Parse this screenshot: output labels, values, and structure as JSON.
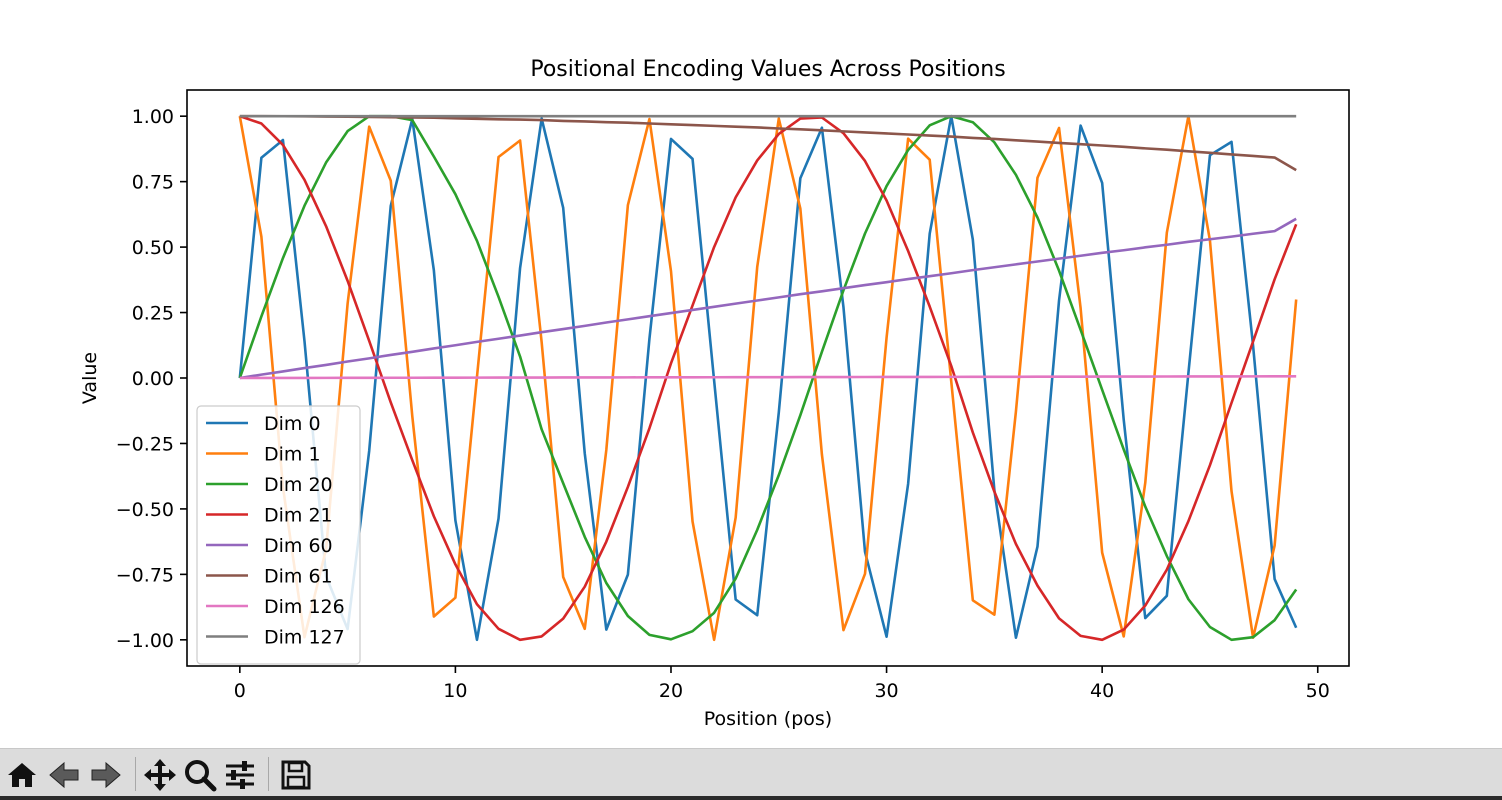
{
  "chart_data": {
    "type": "line",
    "title": "Positional Encoding Values Across Positions",
    "xlabel": "Position (pos)",
    "ylabel": "Value",
    "xlim": [
      -2.45,
      51.45
    ],
    "ylim": [
      -1.1,
      1.1
    ],
    "xticks": [
      0,
      10,
      20,
      30,
      40,
      50
    ],
    "yticks": [
      1.0,
      0.75,
      0.5,
      0.25,
      0.0,
      -0.25,
      -0.5,
      -0.75,
      -1.0
    ],
    "ytick_labels": [
      "1.00",
      "0.75",
      "0.50",
      "0.25",
      "0.00",
      "−0.25",
      "−0.50",
      "−0.75",
      "−1.00"
    ],
    "x": [
      0,
      1,
      2,
      3,
      4,
      5,
      6,
      7,
      8,
      9,
      10,
      11,
      12,
      13,
      14,
      15,
      16,
      17,
      18,
      19,
      20,
      21,
      22,
      23,
      24,
      25,
      26,
      27,
      28,
      29,
      30,
      31,
      32,
      33,
      34,
      35,
      36,
      37,
      38,
      39,
      40,
      41,
      42,
      43,
      44,
      45,
      46,
      47,
      48,
      49
    ],
    "legend_position": "lower left",
    "grid": false,
    "series": [
      {
        "name": "Dim 0",
        "color": "#1f77b4",
        "values": [
          0.0,
          0.841,
          0.909,
          0.141,
          -0.757,
          -0.959,
          -0.279,
          0.657,
          0.989,
          0.412,
          -0.544,
          -1.0,
          -0.537,
          0.42,
          0.991,
          0.65,
          -0.288,
          -0.961,
          -0.751,
          0.15,
          0.913,
          0.837,
          -0.009,
          -0.846,
          -0.906,
          -0.132,
          0.763,
          0.956,
          0.271,
          -0.664,
          -0.988,
          -0.404,
          0.551,
          1.0,
          0.529,
          -0.428,
          -0.992,
          -0.644,
          0.296,
          0.964,
          0.745,
          -0.159,
          -0.917,
          -0.832,
          0.018,
          0.851,
          0.902,
          0.124,
          -0.768,
          -0.954
        ]
      },
      {
        "name": "Dim 1",
        "color": "#ff7f0e",
        "values": [
          1.0,
          0.54,
          -0.416,
          -0.99,
          -0.654,
          0.284,
          0.96,
          0.754,
          -0.146,
          -0.911,
          -0.839,
          0.004,
          0.844,
          0.907,
          0.137,
          -0.76,
          -0.958,
          -0.275,
          0.66,
          0.989,
          0.408,
          -0.548,
          -1.0,
          -0.533,
          0.424,
          0.991,
          0.647,
          -0.292,
          -0.963,
          -0.748,
          0.154,
          0.914,
          0.834,
          -0.013,
          -0.849,
          -0.904,
          -0.128,
          0.765,
          0.955,
          0.267,
          -0.667,
          -0.987,
          -0.4,
          0.555,
          1.0,
          0.525,
          -0.432,
          -0.992,
          -0.64,
          0.3
        ]
      },
      {
        "name": "Dim 20",
        "color": "#2ca02c",
        "values": [
          0.0,
          0.235,
          0.458,
          0.658,
          0.823,
          0.943,
          0.9999,
          1.0,
          0.985,
          0.846,
          0.702,
          0.524,
          0.31,
          0.082,
          -0.196,
          -0.402,
          -0.607,
          -0.783,
          -0.909,
          -0.981,
          -0.998,
          -0.967,
          -0.897,
          -0.766,
          -0.58,
          -0.371,
          -0.142,
          0.1,
          0.335,
          0.552,
          0.733,
          0.871,
          0.965,
          1.0,
          0.977,
          0.9,
          0.776,
          0.613,
          0.41,
          0.184,
          -0.045,
          -0.273,
          -0.491,
          -0.68,
          -0.845,
          -0.951,
          -1.0,
          -0.99,
          -0.925,
          -0.808
        ]
      },
      {
        "name": "Dim 21",
        "color": "#d62728",
        "values": [
          1.0,
          0.972,
          0.89,
          0.757,
          0.58,
          0.371,
          0.142,
          -0.093,
          -0.314,
          -0.528,
          -0.712,
          -0.864,
          -0.958,
          -1.0,
          -0.987,
          -0.919,
          -0.797,
          -0.625,
          -0.416,
          -0.192,
          0.056,
          0.277,
          0.5,
          0.69,
          0.831,
          0.932,
          0.991,
          0.995,
          0.935,
          0.829,
          0.678,
          0.485,
          0.273,
          0.046,
          -0.208,
          -0.434,
          -0.634,
          -0.793,
          -0.918,
          -0.985,
          -1.0,
          -0.961,
          -0.869,
          -0.732,
          -0.547,
          -0.333,
          -0.095,
          0.139,
          0.377,
          0.587
        ]
      },
      {
        "name": "Dim 60",
        "color": "#9467bd",
        "values": [
          0.0,
          0.013,
          0.025,
          0.038,
          0.05,
          0.063,
          0.075,
          0.088,
          0.1,
          0.113,
          0.125,
          0.138,
          0.15,
          0.162,
          0.175,
          0.187,
          0.199,
          0.212,
          0.224,
          0.236,
          0.248,
          0.26,
          0.272,
          0.284,
          0.296,
          0.308,
          0.32,
          0.331,
          0.343,
          0.355,
          0.366,
          0.378,
          0.389,
          0.4,
          0.412,
          0.423,
          0.434,
          0.445,
          0.456,
          0.467,
          0.478,
          0.488,
          0.499,
          0.509,
          0.52,
          0.53,
          0.54,
          0.551,
          0.561,
          0.608
        ]
      },
      {
        "name": "Dim 61",
        "color": "#8c564b",
        "values": [
          1.0,
          1.0,
          0.9997,
          0.9993,
          0.9987,
          0.998,
          0.997,
          0.996,
          0.995,
          0.994,
          0.992,
          0.99,
          0.988,
          0.987,
          0.985,
          0.982,
          0.98,
          0.977,
          0.975,
          0.972,
          0.969,
          0.966,
          0.963,
          0.96,
          0.957,
          0.953,
          0.95,
          0.946,
          0.942,
          0.938,
          0.934,
          0.93,
          0.926,
          0.922,
          0.917,
          0.913,
          0.908,
          0.903,
          0.898,
          0.893,
          0.888,
          0.883,
          0.877,
          0.872,
          0.866,
          0.86,
          0.854,
          0.848,
          0.842,
          0.794
        ]
      },
      {
        "name": "Dim 126",
        "color": "#e377c2",
        "values": [
          0.0,
          0.0001,
          0.0003,
          0.0004,
          0.0005,
          0.0007,
          0.0008,
          0.0009,
          0.001,
          0.0012,
          0.0013,
          0.0014,
          0.0016,
          0.0017,
          0.0018,
          0.002,
          0.0021,
          0.0022,
          0.0024,
          0.0025,
          0.0026,
          0.0028,
          0.0029,
          0.003,
          0.0032,
          0.0033,
          0.0034,
          0.0036,
          0.0037,
          0.0038,
          0.0039,
          0.0041,
          0.0042,
          0.0043,
          0.0045,
          0.0046,
          0.0047,
          0.0049,
          0.005,
          0.0051,
          0.0053,
          0.0054,
          0.0055,
          0.0057,
          0.0058,
          0.0059,
          0.0061,
          0.0062,
          0.0063,
          0.0065
        ]
      },
      {
        "name": "Dim 127",
        "color": "#7f7f7f",
        "values": [
          1.0,
          1.0,
          1.0,
          1.0,
          1.0,
          1.0,
          1.0,
          1.0,
          1.0,
          1.0,
          1.0,
          1.0,
          1.0,
          1.0,
          1.0,
          1.0,
          1.0,
          1.0,
          1.0,
          1.0,
          1.0,
          1.0,
          1.0,
          1.0,
          1.0,
          1.0,
          1.0,
          1.0,
          1.0,
          1.0,
          1.0,
          1.0,
          1.0,
          1.0,
          1.0,
          1.0,
          1.0,
          1.0,
          1.0,
          1.0,
          1.0,
          1.0,
          1.0,
          1.0,
          1.0,
          1.0,
          1.0,
          1.0,
          1.0,
          1.0
        ]
      }
    ]
  },
  "toolbar": {
    "buttons": [
      {
        "name": "home-button",
        "icon": "home-icon"
      },
      {
        "name": "back-button",
        "icon": "arrow-left-icon"
      },
      {
        "name": "forward-button",
        "icon": "arrow-right-icon"
      },
      {
        "name": "pan-button",
        "icon": "move-icon"
      },
      {
        "name": "zoom-button",
        "icon": "magnifier-icon"
      },
      {
        "name": "configure-subplots-button",
        "icon": "sliders-icon"
      },
      {
        "name": "save-button",
        "icon": "floppy-disk-icon"
      }
    ]
  }
}
